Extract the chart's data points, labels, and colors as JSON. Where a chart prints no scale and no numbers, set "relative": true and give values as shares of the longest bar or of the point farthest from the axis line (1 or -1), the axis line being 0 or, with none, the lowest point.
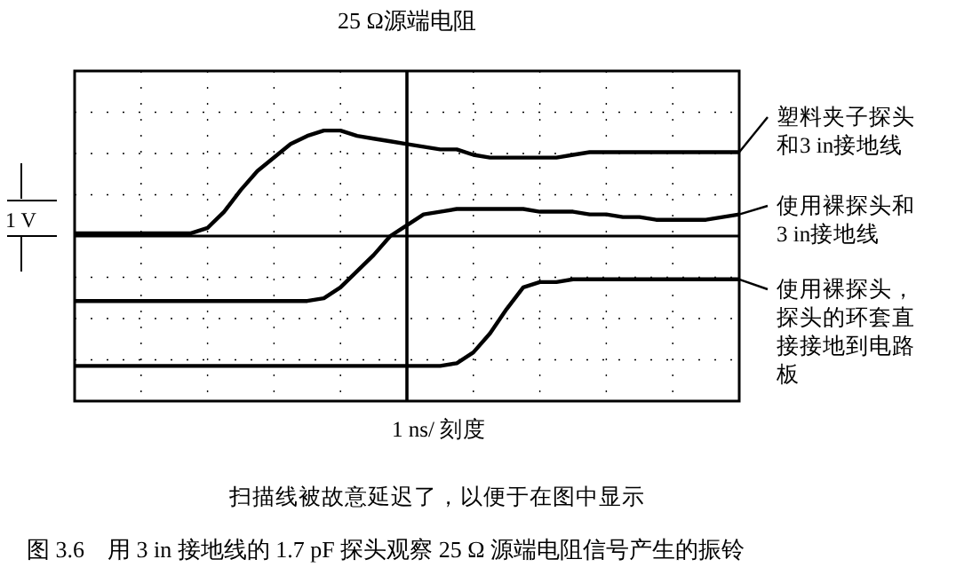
{
  "chart_data": {
    "type": "line",
    "title": "25 Ω源端电阻",
    "xlabel": "1 ns/ 刻度",
    "categories": [
      null,
      null,
      null,
      null,
      null,
      null,
      null,
      null,
      null,
      null,
      null,
      null,
      null,
      null,
      null,
      null,
      null,
      null,
      null,
      null,
      null,
      null,
      null,
      null,
      null,
      null,
      null,
      null,
      null,
      null,
      null,
      null,
      null,
      null,
      null,
      null,
      null,
      null,
      null,
      null,
      null
    ],
    "relative": true,
    "grid": true,
    "ref_lines": [
      {
        "axis": "y",
        "value": 0.61,
        "color": "#000000",
        "line_style": "solid"
      }
    ],
    "legend": "right",
    "marker": "none",
    "line_style": "solid",
    "series": [
      {
        "name": "塑料夹子探头和3 in接地线",
        "color": "#000000",
        "values": [
          0.62,
          0.62,
          0.62,
          0.62,
          0.62,
          0.62,
          0.62,
          0.62,
          0.64,
          0.7,
          0.78,
          0.85,
          0.9,
          0.95,
          0.98,
          1.0,
          1.0,
          0.98,
          0.97,
          0.96,
          0.95,
          0.94,
          0.93,
          0.93,
          0.91,
          0.9,
          0.9,
          0.9,
          0.9,
          0.9,
          0.91,
          0.92,
          0.92,
          0.92,
          0.92,
          0.92,
          0.92,
          0.92,
          0.92,
          0.92,
          0.92
        ]
      },
      {
        "name": "使用裸探头和3 in接地线",
        "color": "#000000",
        "values": [
          0.37,
          0.37,
          0.37,
          0.37,
          0.37,
          0.37,
          0.37,
          0.37,
          0.37,
          0.37,
          0.37,
          0.37,
          0.37,
          0.37,
          0.37,
          0.38,
          0.42,
          0.48,
          0.54,
          0.61,
          0.65,
          0.69,
          0.7,
          0.71,
          0.71,
          0.71,
          0.71,
          0.71,
          0.7,
          0.7,
          0.7,
          0.69,
          0.69,
          0.68,
          0.68,
          0.67,
          0.67,
          0.67,
          0.67,
          0.68,
          0.69
        ]
      },
      {
        "name": "使用裸探头，探头的环套直接接地到电路板",
        "color": "#000000",
        "values": [
          0.13,
          0.13,
          0.13,
          0.13,
          0.13,
          0.13,
          0.13,
          0.13,
          0.13,
          0.13,
          0.13,
          0.13,
          0.13,
          0.13,
          0.13,
          0.13,
          0.13,
          0.13,
          0.13,
          0.13,
          0.13,
          0.13,
          0.13,
          0.14,
          0.18,
          0.25,
          0.34,
          0.42,
          0.44,
          0.44,
          0.45,
          0.45,
          0.45,
          0.45,
          0.45,
          0.45,
          0.45,
          0.45,
          0.45,
          0.45,
          0.45
        ]
      }
    ],
    "annotations": [
      "1 V",
      "扫描线被故意延迟了，以便于在图中显示",
      "图 3.6　用 3 in 接地线的 1.7 pF 探头观察 25 Ω 源端电阻信号产生的振铃"
    ]
  }
}
